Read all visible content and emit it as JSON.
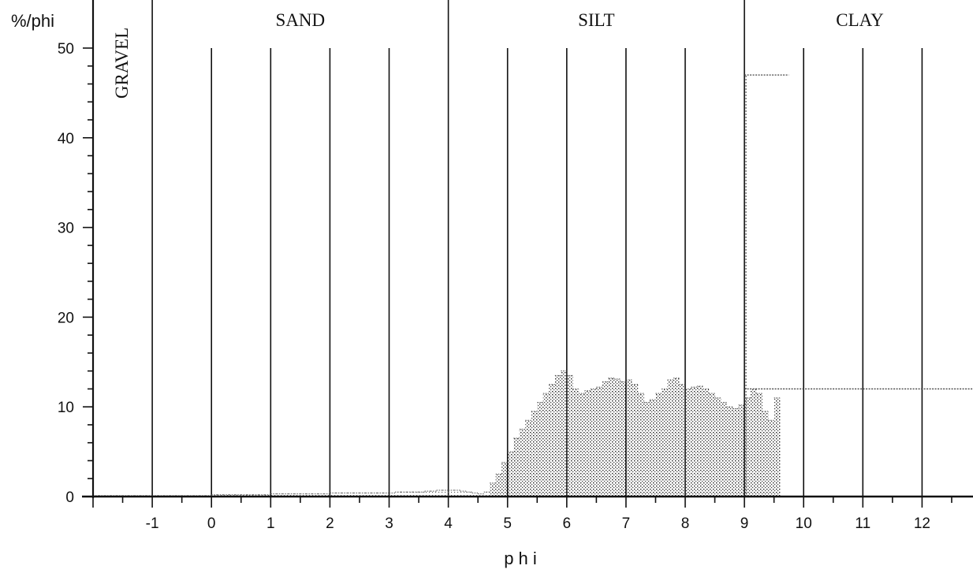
{
  "chart_data": {
    "type": "bar",
    "ylabel": "%/phi",
    "xlabel": "p h i",
    "xlim": [
      -2,
      12.9
    ],
    "ylim": [
      0,
      52
    ],
    "x_ticks": [
      -1,
      0,
      1,
      2,
      3,
      4,
      5,
      6,
      7,
      8,
      9,
      10,
      11,
      12
    ],
    "y_ticks": [
      0,
      10,
      20,
      30,
      40,
      50
    ],
    "zones": [
      {
        "label": "GRAVEL",
        "orientation": "vertical",
        "from": -2,
        "to": -1
      },
      {
        "label": "SAND",
        "orientation": "horizontal",
        "from": -1,
        "to": 4
      },
      {
        "label": "SILT",
        "orientation": "horizontal",
        "from": 4,
        "to": 9
      },
      {
        "label": "CLAY",
        "orientation": "horizontal",
        "from": 9,
        "to": 12.9
      }
    ],
    "grid": "vertical lines at each integer phi",
    "bin_width": 0.1,
    "series": [
      {
        "x_start": -2.0,
        "values": [
          0.1,
          0.1,
          0.1,
          0.1,
          0.1,
          0.1,
          0.1,
          0.1,
          0.1,
          0.1,
          0.1,
          0.1,
          0.1,
          0.1,
          0.1,
          0.1,
          0.1,
          0.1,
          0.1,
          0.1,
          0.2,
          0.2,
          0.2,
          0.2,
          0.2,
          0.2,
          0.2,
          0.2,
          0.2,
          0.2,
          0.3,
          0.3,
          0.3,
          0.3,
          0.3,
          0.3,
          0.3,
          0.3,
          0.3,
          0.3,
          0.4,
          0.4,
          0.4,
          0.4,
          0.4,
          0.4,
          0.4,
          0.4,
          0.4,
          0.4,
          0.4,
          0.5,
          0.5,
          0.5,
          0.5,
          0.5,
          0.6,
          0.6,
          0.7,
          0.7,
          0.7,
          0.7,
          0.6,
          0.5,
          0.4,
          0.3,
          0.5,
          1.5,
          2.5,
          3.8,
          5.0,
          6.5,
          7.5,
          8.5,
          9.5,
          10.5,
          11.5,
          12.5,
          13.5,
          14.0,
          13.5,
          12.0,
          11.5,
          11.8,
          12.0,
          12.2,
          12.8,
          13.2,
          13.1,
          12.8,
          13.0,
          12.5,
          11.5,
          10.5,
          10.8,
          11.5,
          12.0,
          13.0,
          13.2,
          12.5,
          12.0,
          12.2,
          12.3,
          12.0,
          11.5,
          11.0,
          10.5,
          10.0,
          9.8,
          10.2,
          11.0,
          12.0,
          11.5,
          9.5,
          8.5,
          11.0
        ]
      },
      {
        "segments": [
          {
            "from": 9.0,
            "to": 9.75,
            "value": 47.0
          },
          {
            "from": 9.0,
            "to": 12.9,
            "value": 12.0
          }
        ]
      }
    ]
  },
  "colors": {
    "axis": "#111111",
    "bars": "#222222",
    "grid": "#111111"
  }
}
